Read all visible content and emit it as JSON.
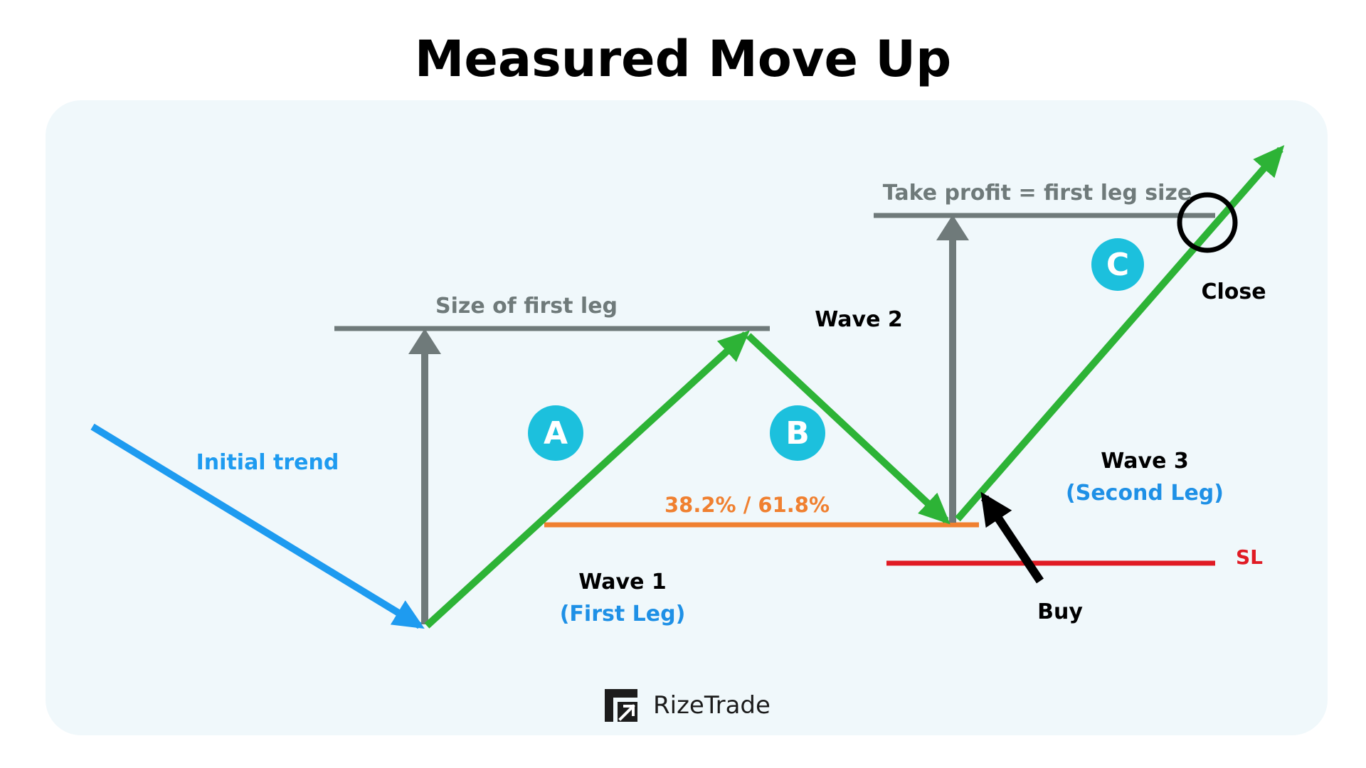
{
  "title": "Measured Move Up",
  "labels": {
    "initial_trend": "Initial trend",
    "size_of_first_leg": "Size of first leg",
    "take_profit": "Take profit = first leg size",
    "wave1": "Wave 1",
    "wave1_sub": "(First Leg)",
    "wave2": "Wave 2",
    "wave3": "Wave 3",
    "wave3_sub": "(Second Leg)",
    "fib": "38.2% / 61.8%",
    "buy": "Buy",
    "close": "Close",
    "sl": "SL",
    "point_a": "A",
    "point_b": "B",
    "point_c": "C"
  },
  "brand": {
    "name": "RizeTrade",
    "icon": "rizetrade-logo-icon"
  },
  "colors": {
    "initial_trend": "#1e9bf0",
    "wave": "#2db336",
    "measure": "#6f7a7a",
    "fib_line": "#f08030",
    "stop_loss": "#e01b24",
    "badge": "#1cc0dd",
    "sub_label": "#1e90e6",
    "panel_bg": "#f0f8fb"
  }
}
